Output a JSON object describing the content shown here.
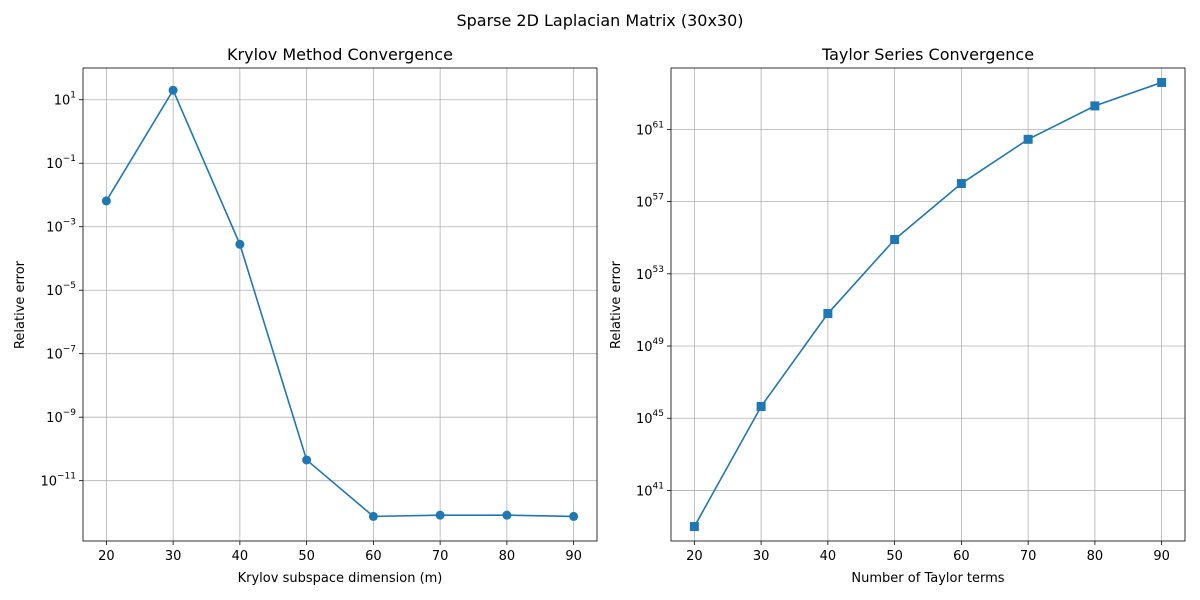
{
  "figure": {
    "suptitle": "Sparse 2D Laplacian Matrix (30x30)"
  },
  "chart_data": [
    {
      "type": "line",
      "title": "Krylov Method Convergence",
      "xlabel": "Krylov subspace dimension (m)",
      "ylabel": "Relative error",
      "yscale": "log",
      "marker": "circle",
      "color": "#1f77b4",
      "grid": true,
      "x": [
        20,
        30,
        40,
        50,
        60,
        70,
        80,
        90
      ],
      "y": [
        0.0065,
        20,
        0.00028,
        4.5e-11,
        7.5e-13,
        8.2e-13,
        8.2e-13,
        7.5e-13
      ],
      "xticks": [
        20,
        30,
        40,
        50,
        60,
        70,
        80,
        90
      ],
      "xlim": [
        16.5,
        93.5
      ],
      "yticks_exp": [
        1,
        -1,
        -3,
        -5,
        -7,
        -9,
        -11
      ],
      "ylim_exp": [
        -12.9,
        2.0
      ]
    },
    {
      "type": "line",
      "title": "Taylor Series Convergence",
      "xlabel": "Number of Taylor terms",
      "ylabel": "Relative error",
      "yscale": "log",
      "marker": "square",
      "color": "#1f77b4",
      "grid": true,
      "x": [
        20,
        30,
        40,
        50,
        60,
        70,
        80,
        90
      ],
      "y_log10": [
        39.0,
        45.65,
        50.8,
        54.9,
        58.0,
        60.45,
        62.3,
        63.6
      ],
      "xticks": [
        20,
        30,
        40,
        50,
        60,
        70,
        80,
        90
      ],
      "xlim": [
        16.5,
        93.5
      ],
      "yticks_exp": [
        41,
        45,
        49,
        53,
        57,
        61
      ],
      "ylim_exp": [
        38.2,
        64.4
      ]
    }
  ]
}
